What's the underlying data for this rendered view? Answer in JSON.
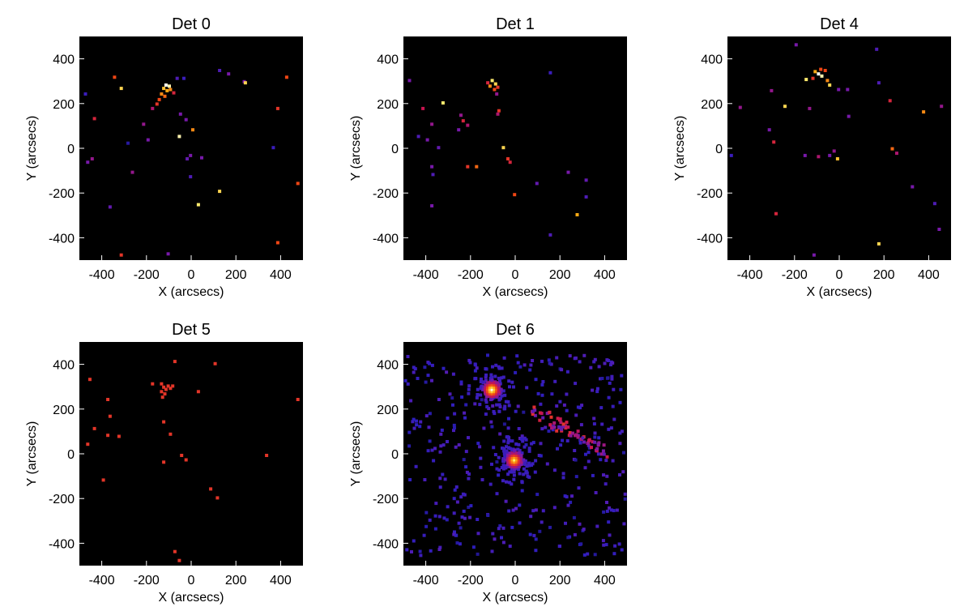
{
  "chart_data": [
    {
      "type": "heatmap",
      "title": "Det 0",
      "xlabel": "X (arcsecs)",
      "ylabel": "Y (arcsecs)",
      "xlim": [
        -500,
        500
      ],
      "ylim": [
        -500,
        500
      ],
      "xticks": [
        -400,
        -200,
        0,
        200,
        400
      ],
      "yticks": [
        400,
        200,
        0,
        -200,
        -400
      ],
      "colormap": "hot",
      "points": [
        [
          -120,
          290,
          1.0
        ],
        [
          -105,
          285,
          0.95
        ],
        [
          -130,
          275,
          0.8
        ],
        [
          -115,
          265,
          0.75
        ],
        [
          -140,
          250,
          0.7
        ],
        [
          -125,
          240,
          0.65
        ],
        [
          -150,
          225,
          0.6
        ],
        [
          -100,
          270,
          0.7
        ],
        [
          -85,
          255,
          0.5
        ],
        [
          -160,
          205,
          0.55
        ],
        [
          -180,
          185,
          0.4
        ],
        [
          -70,
          320,
          0.2
        ],
        [
          -350,
          325,
          0.6
        ],
        [
          -320,
          275,
          0.85
        ],
        [
          -480,
          250,
          0.15
        ],
        [
          120,
          355,
          0.2
        ],
        [
          160,
          340,
          0.3
        ],
        [
          230,
          305,
          0.3
        ],
        [
          420,
          325,
          0.6
        ],
        [
          380,
          185,
          0.55
        ],
        [
          -440,
          140,
          0.5
        ],
        [
          -220,
          115,
          0.35
        ],
        [
          -55,
          160,
          0.3
        ],
        [
          -30,
          135,
          0.3
        ],
        [
          -60,
          60,
          0.95
        ],
        [
          0,
          90,
          0.7
        ],
        [
          -290,
          30,
          0.1
        ],
        [
          -200,
          45,
          0.3
        ],
        [
          360,
          10,
          0.15
        ],
        [
          -10,
          -25,
          0.3
        ],
        [
          -25,
          -40,
          0.25
        ],
        [
          40,
          -35,
          0.3
        ],
        [
          -450,
          -40,
          0.35
        ],
        [
          -470,
          -55,
          0.3
        ],
        [
          -270,
          -100,
          0.35
        ],
        [
          -10,
          -120,
          0.2
        ],
        [
          120,
          -185,
          0.85
        ],
        [
          25,
          -245,
          0.9
        ],
        [
          470,
          -150,
          0.6
        ],
        [
          -370,
          -255,
          0.25
        ],
        [
          -320,
          -470,
          0.55
        ],
        [
          -110,
          -465,
          0.3
        ],
        [
          380,
          -415,
          0.6
        ],
        [
          235,
          300,
          0.85
        ],
        [
          -40,
          320,
          0.15
        ]
      ]
    },
    {
      "type": "heatmap",
      "title": "Det 1",
      "xlabel": "X (arcsecs)",
      "ylabel": "Y (arcsecs)",
      "xlim": [
        -500,
        500
      ],
      "ylim": [
        -500,
        500
      ],
      "xticks": [
        -400,
        -200,
        0,
        200,
        400
      ],
      "yticks": [
        400,
        200,
        0,
        -200,
        -400
      ],
      "colormap": "hot",
      "points": [
        [
          -110,
          310,
          0.9
        ],
        [
          -95,
          295,
          0.85
        ],
        [
          -120,
          285,
          0.7
        ],
        [
          -100,
          270,
          0.6
        ],
        [
          -85,
          280,
          0.55
        ],
        [
          -130,
          300,
          0.5
        ],
        [
          -90,
          250,
          0.35
        ],
        [
          -80,
          175,
          0.55
        ],
        [
          -85,
          160,
          0.4
        ],
        [
          150,
          345,
          0.15
        ],
        [
          -480,
          310,
          0.3
        ],
        [
          -420,
          185,
          0.45
        ],
        [
          -330,
          210,
          0.9
        ],
        [
          -250,
          155,
          0.35
        ],
        [
          -240,
          130,
          0.5
        ],
        [
          -220,
          110,
          0.4
        ],
        [
          -260,
          90,
          0.3
        ],
        [
          -380,
          115,
          0.35
        ],
        [
          -400,
          45,
          0.3
        ],
        [
          -350,
          10,
          0.25
        ],
        [
          -60,
          10,
          0.85
        ],
        [
          -40,
          -40,
          0.55
        ],
        [
          -30,
          -55,
          0.5
        ],
        [
          -180,
          -75,
          0.65
        ],
        [
          -220,
          -75,
          0.55
        ],
        [
          -380,
          -75,
          0.3
        ],
        [
          -375,
          -110,
          0.2
        ],
        [
          -10,
          -200,
          0.6
        ],
        [
          90,
          -150,
          0.25
        ],
        [
          230,
          -100,
          0.3
        ],
        [
          310,
          -135,
          0.25
        ],
        [
          310,
          -210,
          0.2
        ],
        [
          270,
          -290,
          0.75
        ],
        [
          490,
          -285,
          0.3
        ],
        [
          150,
          -380,
          0.2
        ],
        [
          -380,
          -250,
          0.3
        ],
        [
          -440,
          60,
          0.2
        ]
      ]
    },
    {
      "type": "heatmap",
      "title": "Det 4",
      "xlabel": "X (arcsecs)",
      "ylabel": "Y (arcsecs)",
      "xlim": [
        -500,
        500
      ],
      "ylim": [
        -500,
        500
      ],
      "xticks": [
        -400,
        -200,
        0,
        200,
        400
      ],
      "yticks": [
        400,
        200,
        0,
        -200,
        -400
      ],
      "colormap": "hot",
      "points": [
        [
          -100,
          340,
          1.0
        ],
        [
          -85,
          330,
          0.95
        ],
        [
          -115,
          350,
          0.75
        ],
        [
          -70,
          355,
          0.6
        ],
        [
          -125,
          320,
          0.55
        ],
        [
          -60,
          310,
          0.7
        ],
        [
          -90,
          360,
          0.6
        ],
        [
          -155,
          315,
          0.9
        ],
        [
          -50,
          290,
          0.85
        ],
        [
          -200,
          470,
          0.3
        ],
        [
          160,
          450,
          0.2
        ],
        [
          170,
          300,
          0.2
        ],
        [
          -310,
          265,
          0.35
        ],
        [
          -450,
          190,
          0.35
        ],
        [
          -10,
          270,
          0.3
        ],
        [
          -140,
          185,
          0.35
        ],
        [
          30,
          270,
          0.3
        ],
        [
          220,
          220,
          0.5
        ],
        [
          35,
          150,
          0.3
        ],
        [
          370,
          170,
          0.7
        ],
        [
          -250,
          195,
          0.85
        ],
        [
          450,
          195,
          0.35
        ],
        [
          -320,
          90,
          0.3
        ],
        [
          -300,
          35,
          0.5
        ],
        [
          -490,
          -25,
          0.15
        ],
        [
          -160,
          -25,
          0.3
        ],
        [
          -100,
          -30,
          0.4
        ],
        [
          -30,
          -5,
          0.35
        ],
        [
          -15,
          -40,
          0.8
        ],
        [
          -50,
          -25,
          0.3
        ],
        [
          230,
          5,
          0.65
        ],
        [
          250,
          -15,
          0.4
        ],
        [
          320,
          -165,
          0.3
        ],
        [
          420,
          -240,
          0.2
        ],
        [
          440,
          -355,
          0.3
        ],
        [
          170,
          -420,
          0.85
        ],
        [
          -290,
          -285,
          0.5
        ],
        [
          -120,
          -470,
          0.3
        ]
      ]
    },
    {
      "type": "heatmap",
      "title": "Det 5",
      "xlabel": "X (arcsecs)",
      "ylabel": "Y (arcsecs)",
      "xlim": [
        -500,
        500
      ],
      "ylim": [
        -500,
        500
      ],
      "xticks": [
        -400,
        -200,
        0,
        200,
        400
      ],
      "yticks": [
        400,
        200,
        0,
        -200,
        -400
      ],
      "colormap": "hot",
      "points": [
        [
          -140,
          320,
          0.55
        ],
        [
          -130,
          305,
          0.55
        ],
        [
          -120,
          295,
          0.55
        ],
        [
          -140,
          285,
          0.55
        ],
        [
          -110,
          310,
          0.55
        ],
        [
          -100,
          300,
          0.55
        ],
        [
          -125,
          275,
          0.55
        ],
        [
          -135,
          260,
          0.55
        ],
        [
          -90,
          310,
          0.55
        ],
        [
          -80,
          420,
          0.55
        ],
        [
          100,
          410,
          0.55
        ],
        [
          25,
          285,
          0.55
        ],
        [
          -460,
          340,
          0.55
        ],
        [
          -380,
          250,
          0.55
        ],
        [
          -370,
          175,
          0.55
        ],
        [
          -440,
          120,
          0.55
        ],
        [
          -380,
          90,
          0.55
        ],
        [
          -330,
          85,
          0.55
        ],
        [
          -470,
          50,
          0.55
        ],
        [
          -130,
          150,
          0.55
        ],
        [
          470,
          250,
          0.55
        ],
        [
          -100,
          95,
          0.55
        ],
        [
          -50,
          0,
          0.55
        ],
        [
          -30,
          -20,
          0.55
        ],
        [
          -130,
          -30,
          0.55
        ],
        [
          330,
          0,
          0.55
        ],
        [
          -400,
          -110,
          0.55
        ],
        [
          80,
          -150,
          0.55
        ],
        [
          110,
          -190,
          0.55
        ],
        [
          -80,
          -430,
          0.55
        ],
        [
          -60,
          -470,
          0.55
        ],
        [
          -180,
          320,
          0.55
        ]
      ]
    },
    {
      "type": "heatmap",
      "title": "Det 6",
      "xlabel": "X (arcsecs)",
      "ylabel": "Y (arcsecs)",
      "xlim": [
        -500,
        500
      ],
      "ylim": [
        -500,
        500
      ],
      "xticks": [
        -400,
        -200,
        0,
        200,
        400
      ],
      "yticks": [
        400,
        200,
        0,
        -200,
        -400
      ],
      "colormap": "hot",
      "sources": [
        {
          "x": -110,
          "y": 295,
          "peak": 1.0
        },
        {
          "x": -10,
          "y": -20,
          "peak": 0.9
        }
      ],
      "background_level": 0.15,
      "loop_feature": {
        "from": [
          80,
          200
        ],
        "to": [
          420,
          0
        ]
      }
    }
  ]
}
